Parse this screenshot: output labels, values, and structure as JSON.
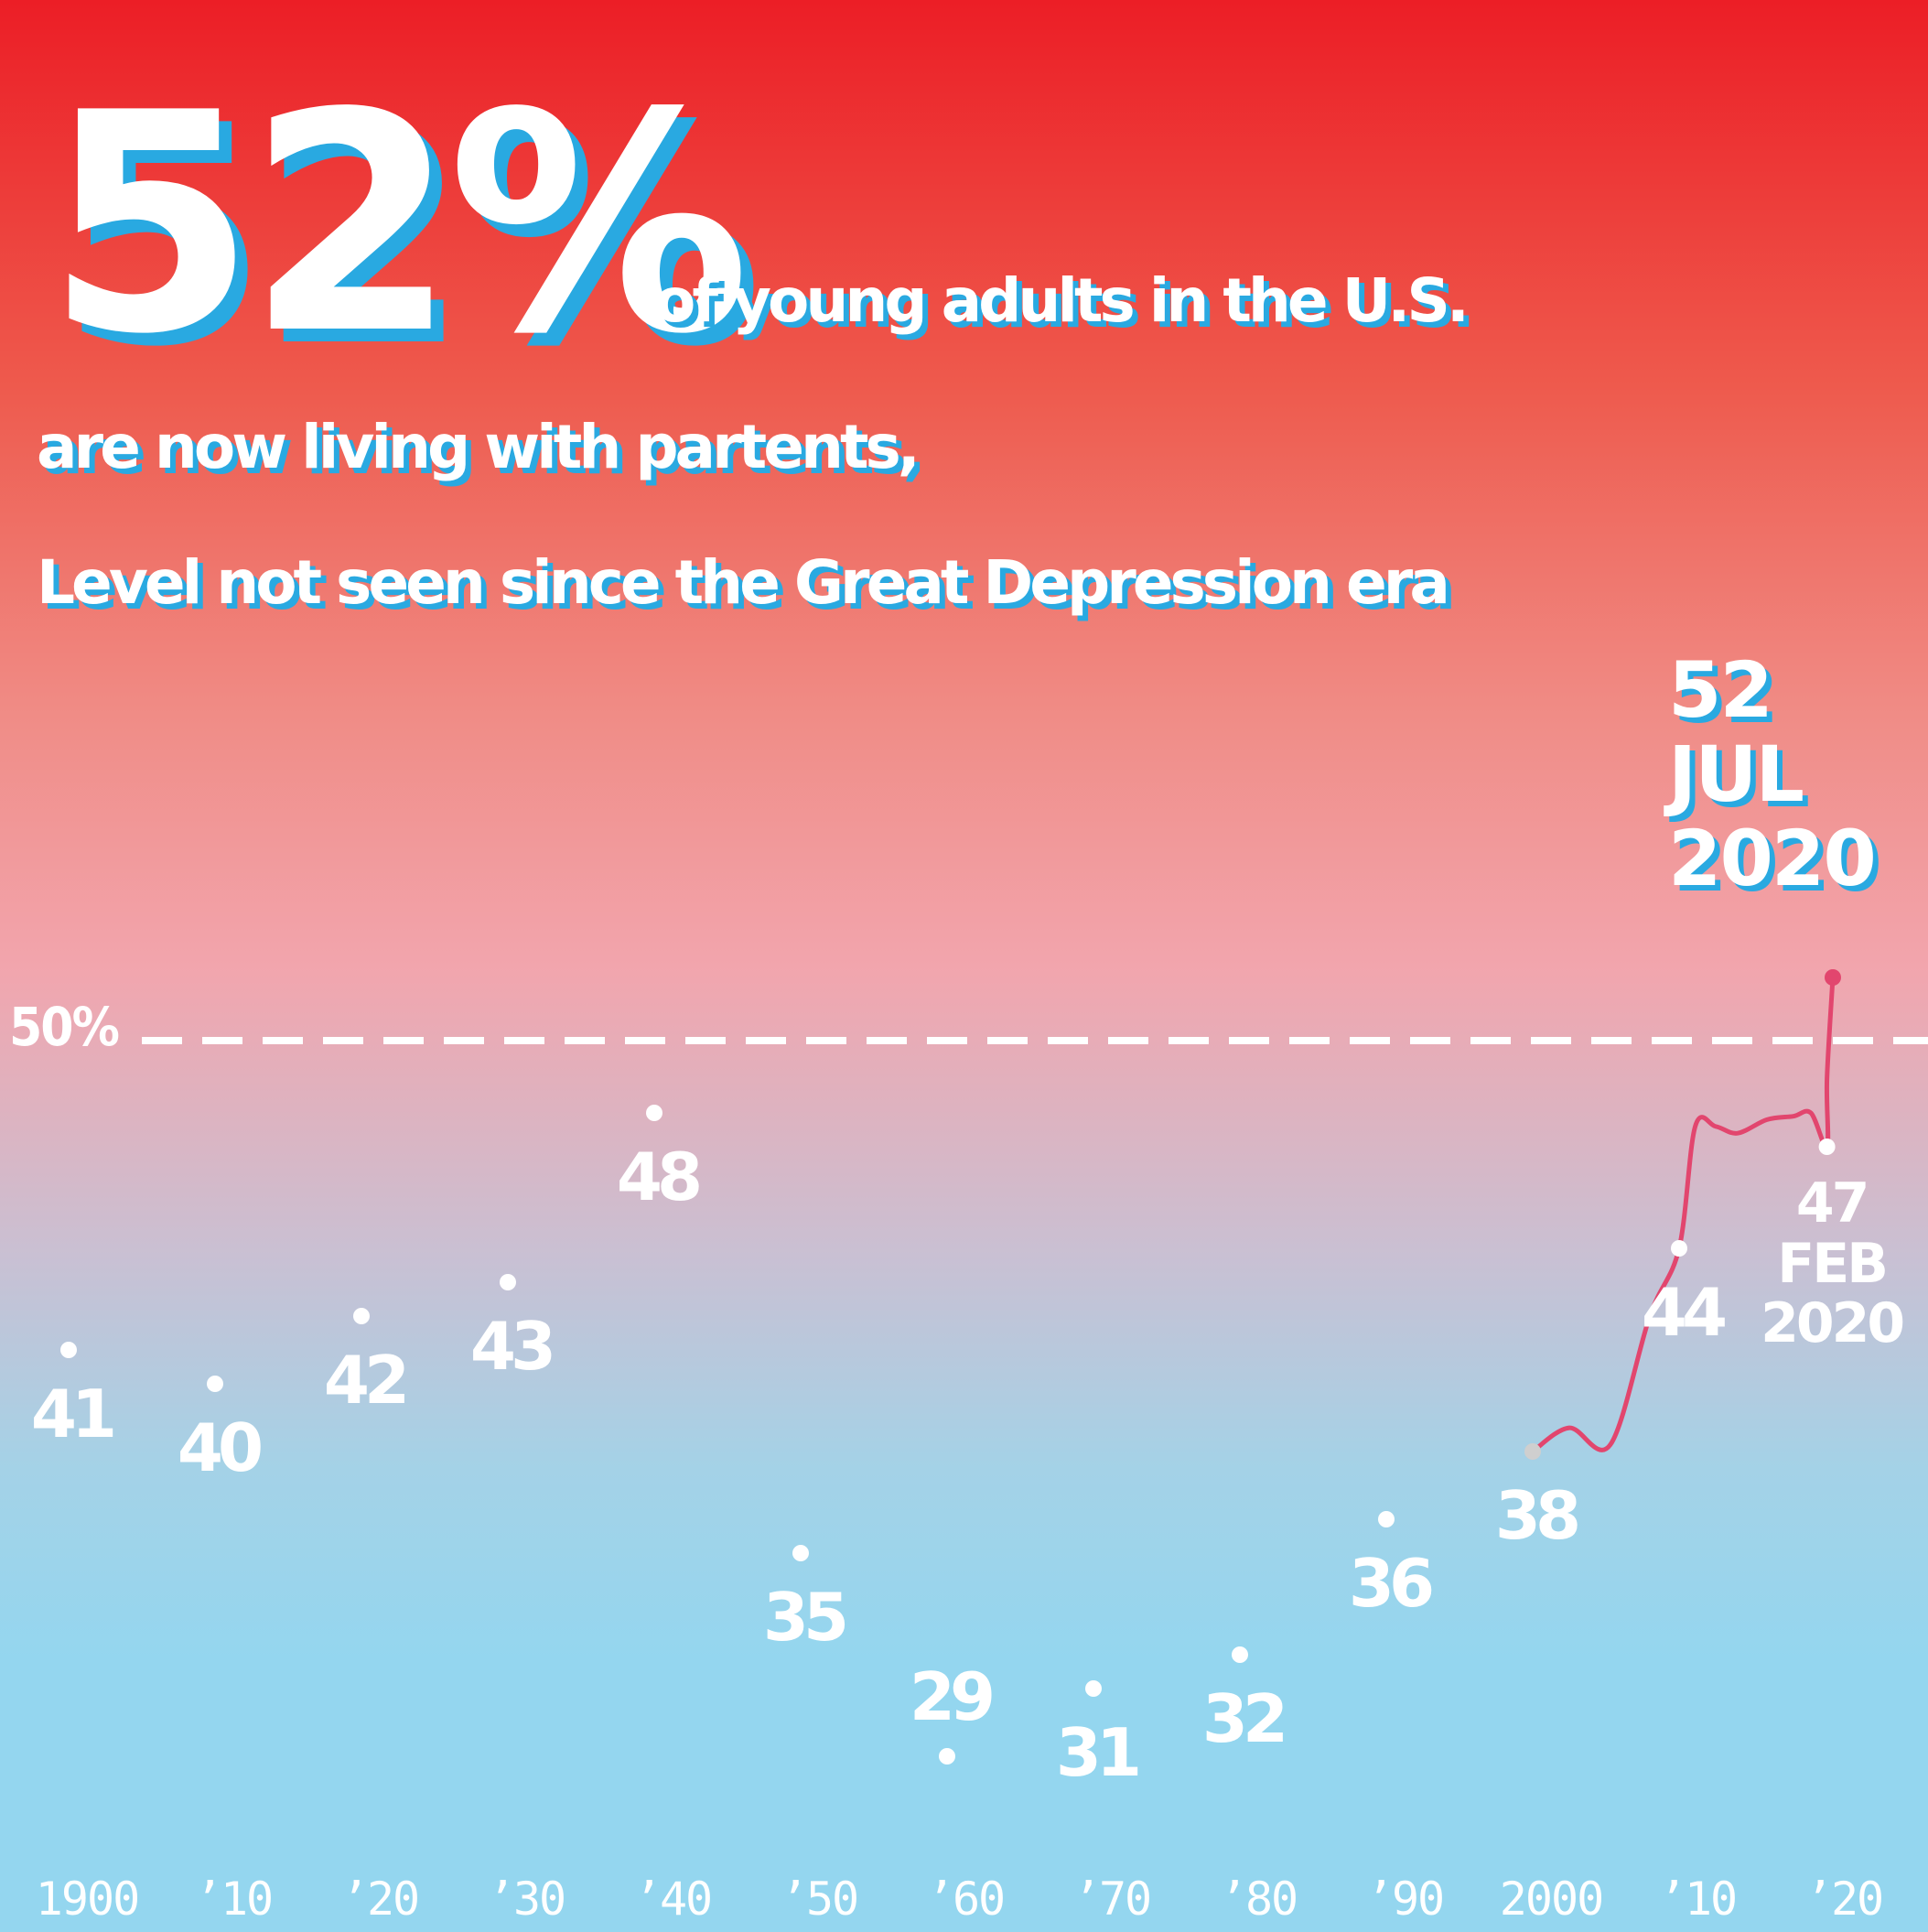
{
  "headline": {
    "value": "52%",
    "line1": "of young adults in the U.S.",
    "line2": "are now living with partents,",
    "line3": "Level not seen since the Great Depression era"
  },
  "reference_line": {
    "value": 50,
    "label": "50%"
  },
  "callouts": {
    "jul_2020": {
      "value": "52",
      "month": "JUL",
      "year": "2020"
    },
    "feb_2020": {
      "value": "47",
      "month": "FEB",
      "year": "2020"
    }
  },
  "colors": {
    "accent_line": "#e2466e",
    "shadow": "#29a9e1",
    "text": "#ffffff",
    "gray_dot": "#cfcfcf"
  },
  "chart_data": {
    "type": "scatter",
    "title": "",
    "xlabel": "",
    "ylabel": "",
    "x_ticks": [
      "1900",
      "’10",
      "’20",
      "’30",
      "’40",
      "’50",
      "’60",
      "’70",
      "’80",
      "’90",
      "2000",
      "’10",
      "’20"
    ],
    "points": [
      {
        "x": 1900,
        "y": 41,
        "label": "41"
      },
      {
        "x": 1910,
        "y": 40,
        "label": "40"
      },
      {
        "x": 1920,
        "y": 42,
        "label": "42"
      },
      {
        "x": 1930,
        "y": 43,
        "label": "43"
      },
      {
        "x": 1940,
        "y": 48,
        "label": "48"
      },
      {
        "x": 1950,
        "y": 35,
        "label": "35"
      },
      {
        "x": 1960,
        "y": 29,
        "label": "29"
      },
      {
        "x": 1970,
        "y": 31,
        "label": "31"
      },
      {
        "x": 1980,
        "y": 32,
        "label": "32"
      },
      {
        "x": 1990,
        "y": 36,
        "label": "36"
      },
      {
        "x": 2000,
        "y": 38,
        "label": "38"
      },
      {
        "x": 2010,
        "y": 44,
        "label": "44"
      },
      {
        "x": 2020.1,
        "y": 47,
        "label": "47"
      },
      {
        "x": 2020.5,
        "y": 52,
        "label": "52"
      }
    ],
    "trend_line": [
      {
        "x": 2000,
        "y": 38
      },
      {
        "x": 2002.5,
        "y": 38.7
      },
      {
        "x": 2005.3,
        "y": 38.2
      },
      {
        "x": 2008,
        "y": 42
      },
      {
        "x": 2010,
        "y": 44
      },
      {
        "x": 2011.1,
        "y": 47.6
      },
      {
        "x": 2012.5,
        "y": 47.6
      },
      {
        "x": 2014,
        "y": 47.4
      },
      {
        "x": 2016,
        "y": 47.8
      },
      {
        "x": 2017.8,
        "y": 47.9
      },
      {
        "x": 2019,
        "y": 48
      },
      {
        "x": 2020.1,
        "y": 47
      },
      {
        "x": 2020.1,
        "y": 49
      },
      {
        "x": 2020.5,
        "y": 52
      }
    ],
    "xlim": [
      1900,
      2020
    ],
    "ylim": [
      29,
      52
    ],
    "grid": false
  }
}
